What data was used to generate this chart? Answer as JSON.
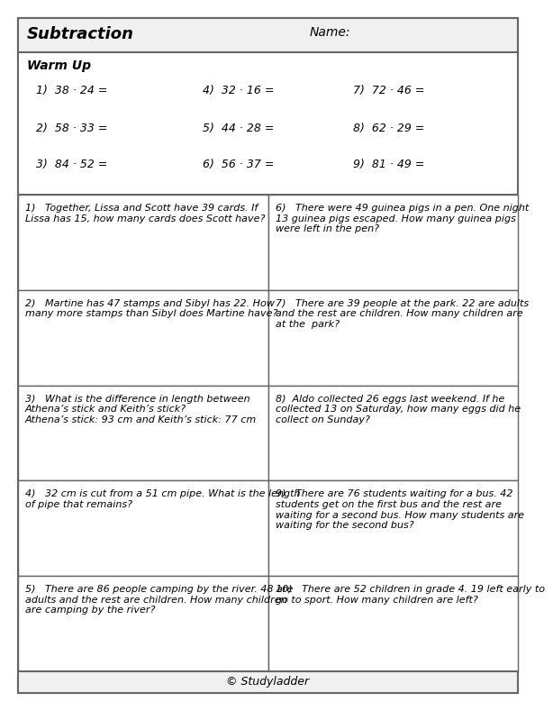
{
  "title": "Subtraction",
  "name_label": "Name:",
  "warm_up_label": "Warm Up",
  "warm_up_problems": [
    [
      "1)  38 · 24 =",
      "4)  32 · 16 =",
      "7)  72 · 46 ="
    ],
    [
      "2)  58 · 33 =",
      "5)  44 · 28 =",
      "8)  62 · 29 ="
    ],
    [
      "3)  84 · 52 =",
      "6)  56 · 37 =",
      "9)  81 · 49 ="
    ]
  ],
  "word_problems_left": [
    "1)   Together, Lissa and Scott have 39 cards. If\nLissa has 15, how many cards does Scott have?",
    "2)   Martine has 47 stamps and Sibyl has 22. How\nmany more stamps than Sibyl does Martine have?",
    "3)   What is the difference in length between\nAthena’s stick and Keith’s stick?\nAthena’s stick: 93 cm and Keith’s stick: 77 cm",
    "4)   32 cm is cut from a 51 cm pipe. What is the length\nof pipe that remains?",
    "5)   There are 86 people camping by the river. 48 are\nadults and the rest are children. How many children\nare camping by the river?"
  ],
  "word_problems_right": [
    "6)   There were 49 guinea pigs in a pen. One night\n13 guinea pigs escaped. How many guinea pigs\nwere left in the pen?",
    "7)   There are 39 people at the park. 22 are adults\nand the rest are children. How many children are\nat the  park?",
    "8)  Aldo collected 26 eggs last weekend. If he\ncollected 13 on Saturday, how many eggs did he\ncollect on Sunday?",
    "9)   There are 76 students waiting for a bus. 42\nstudents get on the first bus and the rest are\nwaiting for a second bus. How many students are\nwaiting for the second bus?",
    "10)   There are 52 children in grade 4. 19 left early to\ngo to sport. How many children are left?"
  ],
  "footer": "© Studyladder",
  "bg_color": "#ffffff",
  "border_color": "#777777",
  "header_bg": "#f0f0f0",
  "title_fontsize": 13,
  "name_fontsize": 10,
  "warmup_label_fontsize": 10,
  "warmup_prob_fontsize": 9,
  "word_prob_fontsize": 8,
  "footer_fontsize": 9
}
